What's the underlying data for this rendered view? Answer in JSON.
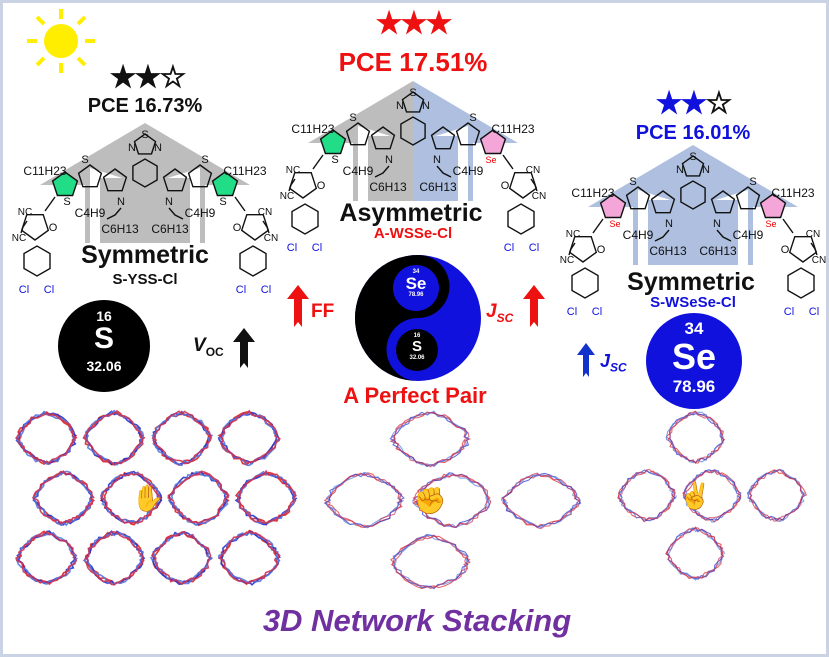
{
  "colors": {
    "red": "#ee1111",
    "blue": "#1111dd",
    "black": "#111111",
    "purple": "#7030a0",
    "sun": "#ffee00",
    "gray_chevron": "#bdbdbd",
    "blue_chevron": "#aebfdf",
    "green_ring": "#22dd88",
    "pink_ring": "#f4a6d8"
  },
  "left": {
    "rating": 2,
    "rating_max": 3,
    "star_color": "#111111",
    "pce": "PCE 16.73%",
    "symmetry": "Symmetric",
    "name": "S-YSS-Cl",
    "element": {
      "number": "16",
      "symbol": "S",
      "mass": "32.06"
    },
    "effect": "V",
    "effect_sub": "OC"
  },
  "center": {
    "rating": 3,
    "rating_max": 3,
    "star_color": "#ee1111",
    "pce": "PCE 17.51%",
    "symmetry": "Asymmetric",
    "name": "A-WSSe-Cl",
    "yin": {
      "number": "34",
      "symbol": "Se",
      "mass": "78.96"
    },
    "yang": {
      "number": "16",
      "symbol": "S",
      "mass": "32.06"
    },
    "left_effect": "FF",
    "right_effect": "J",
    "right_effect_sub": "SC",
    "tagline": "A Perfect Pair"
  },
  "right": {
    "rating": 2,
    "rating_max": 3,
    "star_color": "#1111dd",
    "pce": "PCE 16.01%",
    "symmetry": "Symmetric",
    "name": "S-WSeSe-Cl",
    "element": {
      "number": "34",
      "symbol": "Se",
      "mass": "78.96"
    },
    "effect": "J",
    "effect_sub": "SC"
  },
  "molecule_labels": {
    "thiadiazole_n": "N",
    "thiadiazole_s": "S",
    "thiophene_s": "S",
    "n": "N",
    "c11h23": "C11H23",
    "c4h9": "C4H9",
    "c6h13": "C6H13",
    "cn": "CN",
    "nc": "NC",
    "o": "O",
    "cl": "Cl",
    "se": "Se"
  },
  "molecules": [
    {
      "left_hetero": "S",
      "right_hetero": "S",
      "left_ring": "green",
      "right_ring": "green",
      "chevron": "gray-gray"
    },
    {
      "left_hetero": "S",
      "right_hetero": "Se",
      "left_ring": "green",
      "right_ring": "pink",
      "chevron": "gray-blue"
    },
    {
      "left_hetero": "Se",
      "right_hetero": "Se",
      "left_ring": "pink",
      "right_ring": "pink",
      "chevron": "blue-blue"
    }
  ],
  "networks": [
    {
      "icon": "hand-icon"
    },
    {
      "icon": "handshake-icon"
    },
    {
      "icon": "shaka-hand-icon"
    }
  ],
  "footer": {
    "title": "3D Network Stacking"
  }
}
